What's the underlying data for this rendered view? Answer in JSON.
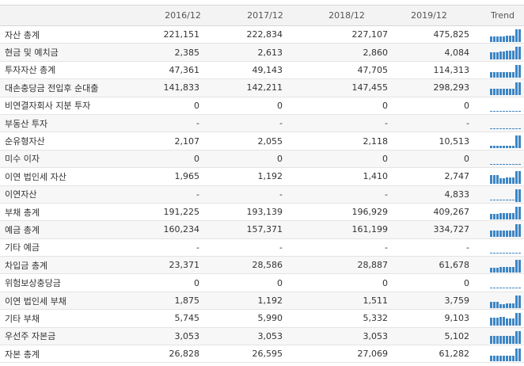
{
  "header": {
    "cols": [
      "2016/12",
      "2017/12",
      "2018/12",
      "2019/12"
    ],
    "trend": "Trend"
  },
  "rows": [
    {
      "name": "자산 총계",
      "values": [
        "221,151",
        "222,834",
        "227,107",
        "475,825"
      ]
    },
    {
      "name": "현금 및 예치금",
      "values": [
        "2,385",
        "2,613",
        "2,860",
        "4,084"
      ]
    },
    {
      "name": "투자자산 총계",
      "values": [
        "47,361",
        "49,143",
        "47,705",
        "114,313"
      ]
    },
    {
      "name": "대손충당금 전입후 순대출",
      "values": [
        "141,833",
        "142,211",
        "147,455",
        "298,293"
      ]
    },
    {
      "name": "비연결자회사 지분 투자",
      "values": [
        "0",
        "0",
        "0",
        "0"
      ]
    },
    {
      "name": "부동산 투자",
      "values": [
        "-",
        "-",
        "-",
        "-"
      ]
    },
    {
      "name": "순유형자산",
      "values": [
        "2,107",
        "2,055",
        "2,118",
        "10,513"
      ]
    },
    {
      "name": "미수 이자",
      "values": [
        "0",
        "0",
        "0",
        "0"
      ]
    },
    {
      "name": "이연 법인세 자산",
      "values": [
        "1,965",
        "1,192",
        "1,410",
        "2,747"
      ]
    },
    {
      "name": "이연자산",
      "values": [
        "-",
        "-",
        "-",
        "4,833"
      ]
    },
    {
      "name": "부채 총계",
      "values": [
        "191,225",
        "193,139",
        "196,929",
        "409,267"
      ]
    },
    {
      "name": "예금 총계",
      "values": [
        "160,234",
        "157,371",
        "161,199",
        "334,727"
      ]
    },
    {
      "name": "기타 예금",
      "values": [
        "-",
        "-",
        "-",
        "-"
      ]
    },
    {
      "name": "차입금 총계",
      "values": [
        "23,371",
        "28,586",
        "28,887",
        "61,678"
      ]
    },
    {
      "name": "위험보상충당금",
      "values": [
        "0",
        "0",
        "0",
        "0"
      ]
    },
    {
      "name": "이연 법인세 부채",
      "values": [
        "1,875",
        "1,192",
        "1,511",
        "3,759"
      ]
    },
    {
      "name": "기타 부채",
      "values": [
        "5,745",
        "5,990",
        "5,332",
        "9,103"
      ]
    },
    {
      "name": "우선주 자본금",
      "values": [
        "3,053",
        "3,053",
        "3,053",
        "5,102"
      ]
    },
    {
      "name": "자본 총계",
      "values": [
        "26,828",
        "26,595",
        "27,069",
        "61,282"
      ]
    }
  ]
}
